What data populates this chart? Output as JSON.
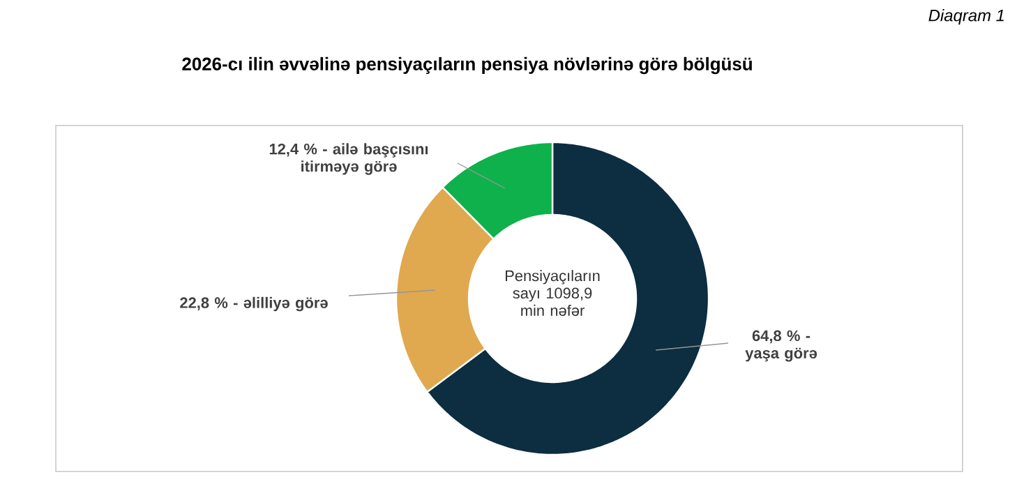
{
  "chart_data": {
    "type": "donut",
    "title": "2026-cı ilin əvvəlinə pensiyaçıların pensiya növlərinə görə bölgüsü",
    "categories": [
      "64,8 % - yaşa görə",
      "22,8 % - əlilliyə görə",
      "12,4 % - ailə başçısını itirməyə görə"
    ],
    "values": [
      64.8,
      22.8,
      12.4
    ],
    "colors": [
      "#0d2d40",
      "#e0a94f",
      "#0fb14c"
    ],
    "annotations": [
      "Pensiyaçıların sayı 1098,9 min nəfər",
      "Diaqram 1"
    ]
  }
}
